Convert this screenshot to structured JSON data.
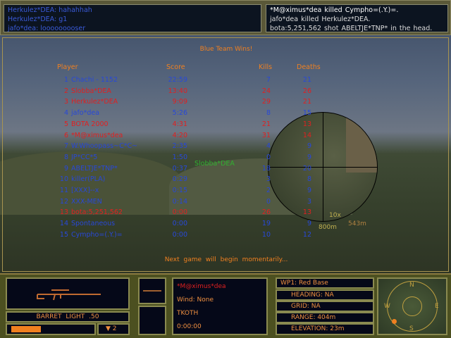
{
  "chat": [
    "Herkulez*DEA:  hahahhah",
    "Herkulez*DEA:  g1",
    "jafo*dea:  looooooooser"
  ],
  "killfeed": [
    "*M@ximus*dea  killed  Cympho=(.Y.)=.",
    "jafo*dea  killed  Herkulez*DEA.",
    "bota:5,251,562  shot  ABELTJE*TNP*  in  the  head."
  ],
  "scoreboard": {
    "title": "Blue Team Wins!",
    "headers": {
      "player": "Player",
      "score": "Score",
      "kills": "Kills",
      "deaths": "Deaths"
    },
    "rows": [
      {
        "n": "1",
        "name": "Chachi - 1152",
        "score": "22:59",
        "kills": "7",
        "deaths": "21",
        "team": "blue"
      },
      {
        "n": "2",
        "name": "Slobba*DEA",
        "score": "13:40",
        "kills": "24",
        "deaths": "26",
        "team": "red"
      },
      {
        "n": "3",
        "name": "Herkulez*DEA",
        "score": "9:09",
        "kills": "29",
        "deaths": "21",
        "team": "red"
      },
      {
        "n": "4",
        "name": "jafo*dea",
        "score": "5:26",
        "kills": "8",
        "deaths": "15",
        "team": "blue"
      },
      {
        "n": "5",
        "name": "BOTA 2000",
        "score": "4:31",
        "kills": "21",
        "deaths": "13",
        "team": "red"
      },
      {
        "n": "6",
        "name": "*M@ximus*dea",
        "score": "4:20",
        "kills": "31",
        "deaths": "14",
        "team": "red"
      },
      {
        "n": "7",
        "name": "W.Whoopass~C*C~",
        "score": "2:35",
        "kills": "4",
        "deaths": "9",
        "team": "blue"
      },
      {
        "n": "8",
        "name": "JP*CC*5",
        "score": "1:50",
        "kills": "0",
        "deaths": "9",
        "team": "blue"
      },
      {
        "n": "9",
        "name": "ABELTJE*TNP*",
        "score": "0:37",
        "kills": "18",
        "deaths": "20",
        "team": "blue"
      },
      {
        "n": "10",
        "name": "killer(PLA)",
        "score": "0:29",
        "kills": "3",
        "deaths": "8",
        "team": "blue"
      },
      {
        "n": "11",
        "name": "[XXX]--x",
        "score": "0:15",
        "kills": "2",
        "deaths": "9",
        "team": "blue"
      },
      {
        "n": "12",
        "name": "XXX-MEN",
        "score": "0:14",
        "kills": "0",
        "deaths": "3",
        "team": "blue"
      },
      {
        "n": "13",
        "name": "bota:5,251,562",
        "score": "0:00",
        "kills": "26",
        "deaths": "13",
        "team": "red"
      },
      {
        "n": "14",
        "name": "Spontaneous",
        "score": "0:00",
        "kills": "19",
        "deaths": "9",
        "team": "blue"
      },
      {
        "n": "15",
        "name": "Cympho=(.Y.)=",
        "score": "0:00",
        "kills": "10",
        "deaths": "12",
        "team": "blue"
      }
    ],
    "footer": "Next game will begin momentarily..."
  },
  "world": {
    "player_tag": "Slobba*DEA"
  },
  "scope": {
    "zoom": "10x",
    "range_left": "800m",
    "range_right": "543m"
  },
  "hud": {
    "weapon": "BARRET LIGHT .50",
    "ammo_fill": 0.35,
    "magazines": "2",
    "player": "*M@ximus*dea",
    "wind": "Wind:  None",
    "mode": "TKOTH",
    "time": "0:00:00",
    "waypoint": "WP1:  Red  Base",
    "heading": "HEADING:  NA",
    "grid": "GRID:  NA",
    "range": "RANGE:  404m",
    "elevation": "ELEVATION:  23m",
    "compass": {
      "n": "N",
      "s": "S",
      "e": "E",
      "w": "W"
    }
  }
}
